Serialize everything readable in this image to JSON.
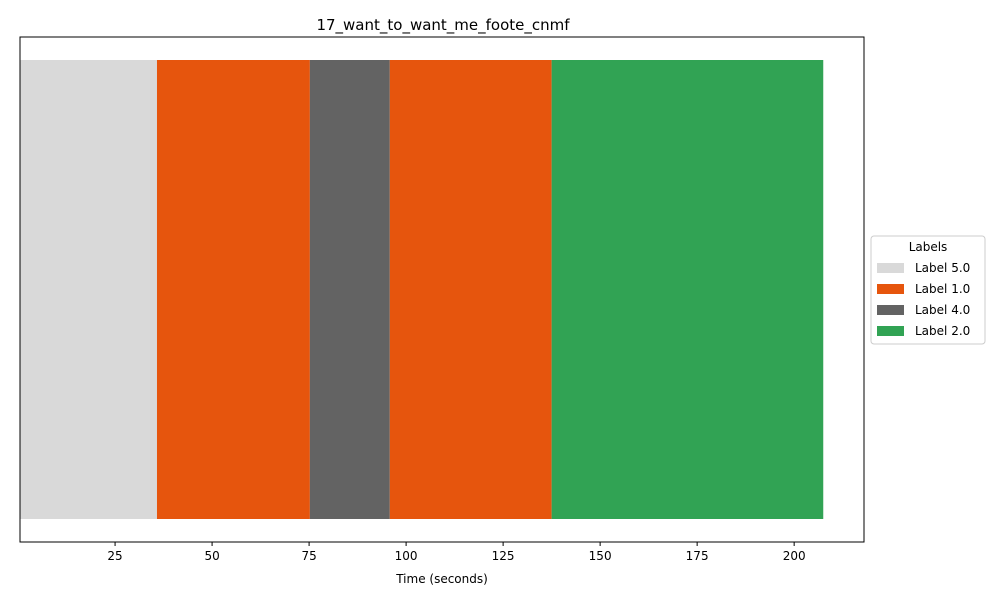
{
  "chart_data": {
    "type": "bar",
    "orientation": "horizontal-timeline",
    "title": "17_want_to_want_me_foote_cnmf",
    "xlabel": "Time (seconds)",
    "ylabel": "",
    "xlim": [
      0.5,
      218
    ],
    "xticks": [
      25,
      50,
      75,
      100,
      125,
      150,
      175,
      200
    ],
    "xtick_labels": [
      "25",
      "50",
      "75",
      "100",
      "125",
      "150",
      "175",
      "200"
    ],
    "segments": [
      {
        "label": "Label 5.0",
        "start": 0.5,
        "end": 35.8
      },
      {
        "label": "Label 1.0",
        "start": 35.8,
        "end": 75.2
      },
      {
        "label": "Label 4.0",
        "start": 75.2,
        "end": 95.8
      },
      {
        "label": "Label 1.0",
        "start": 95.8,
        "end": 137.5
      },
      {
        "label": "Label 2.0",
        "start": 137.5,
        "end": 207.5
      }
    ],
    "legend": {
      "title": "Labels",
      "placement": "right-center",
      "entries": [
        {
          "label": "Label 5.0",
          "color": "#d9d9d9"
        },
        {
          "label": "Label 1.0",
          "color": "#e6550d"
        },
        {
          "label": "Label 4.0",
          "color": "#636363"
        },
        {
          "label": "Label 2.0",
          "color": "#31a354"
        }
      ]
    },
    "grid": false
  }
}
